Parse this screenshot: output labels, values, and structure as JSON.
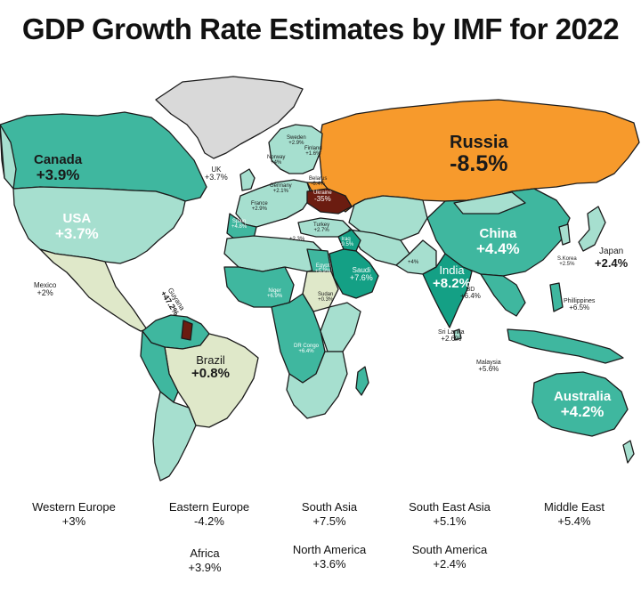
{
  "title": "GDP Growth Rate Estimates by IMF for 2022",
  "colors": {
    "ocean": "#ffffff",
    "low_growth": "#dfe8c9",
    "mid_growth": "#a6dfcf",
    "high_growth": "#3fb79f",
    "very_high_growth": "#14a085",
    "negative": "#f79a2c",
    "severe_negative": "#6b1c10",
    "no_data": "#d9d9d9",
    "border": "#1b1b1b"
  },
  "countries": {
    "russia": {
      "name": "Russia",
      "value": "-8.5%"
    },
    "canada": {
      "name": "Canada",
      "value": "+3.9%"
    },
    "usa": {
      "name": "USA",
      "value": "+3.7%"
    },
    "china": {
      "name": "China",
      "value": "+4.4%"
    },
    "australia": {
      "name": "Australia",
      "value": "+4.2%"
    },
    "brazil": {
      "name": "Brazil",
      "value": "+0.8%"
    },
    "india": {
      "name": "India",
      "value": "+8.2%"
    },
    "japan": {
      "name": "Japan",
      "value": "+2.4%"
    },
    "mexico": {
      "name": "Mexico",
      "value": "+2%"
    },
    "uk": {
      "name": "UK",
      "value": "+3.7%"
    },
    "guyana": {
      "name": "Guyana",
      "value": "+47.2%"
    },
    "saudi": {
      "name": "Saudi",
      "value": "+7.6%"
    },
    "egypt": {
      "name": "Egypt",
      "value": "+5.9%"
    },
    "sudan": {
      "name": "Sudan",
      "value": "+0.3%"
    },
    "niger": {
      "name": "Niger",
      "value": "+6.9%"
    },
    "drc": {
      "name": "DR Congo",
      "value": "+6.4%"
    },
    "bd": {
      "name": "BD",
      "value": "+6.4%"
    },
    "sri_lanka": {
      "name": "Sri Lanka",
      "value": "+2.6%"
    },
    "malaysia": {
      "name": "Malaysia",
      "value": "+5.6%"
    },
    "philippines": {
      "name": "Phillippines",
      "value": "+6.5%"
    },
    "south_korea": {
      "name": "S.Korea",
      "value": "+2.5%"
    },
    "ukraine": {
      "name": "Ukraine",
      "value": "-35%"
    },
    "iraq": {
      "name": "Iraq",
      "value": "+9.5%"
    },
    "turkey": {
      "name": "Turkey",
      "value": "+2.7%"
    },
    "sweden": {
      "name": "Sweden",
      "value": "+2.9%"
    },
    "finland": {
      "name": "Finland",
      "value": "+1.6%"
    },
    "norway": {
      "name": "Norway",
      "value": "+4%"
    },
    "belarus": {
      "name": "Belarus",
      "value": "-6.4%"
    },
    "germany": {
      "name": "Germany",
      "value": "+2.1%"
    },
    "france": {
      "name": "France",
      "value": "+2.9%"
    },
    "spain": {
      "name": "Spain",
      "value": "+4.8%"
    },
    "pakistan_value": "+4%",
    "libya_value": "+2.3%"
  },
  "regions": [
    {
      "name": "Western Europe",
      "value": "+3%"
    },
    {
      "name": "Eastern Europe",
      "value": "-4.2%"
    },
    {
      "name": "South Asia",
      "value": "+7.5%"
    },
    {
      "name": "South East Asia",
      "value": "+5.1%"
    },
    {
      "name": "Middle East",
      "value": "+5.4%"
    },
    {
      "name": "Africa",
      "value": "+3.9%"
    },
    {
      "name": "North America",
      "value": "+3.6%"
    },
    {
      "name": "South America",
      "value": "+2.4%"
    }
  ]
}
